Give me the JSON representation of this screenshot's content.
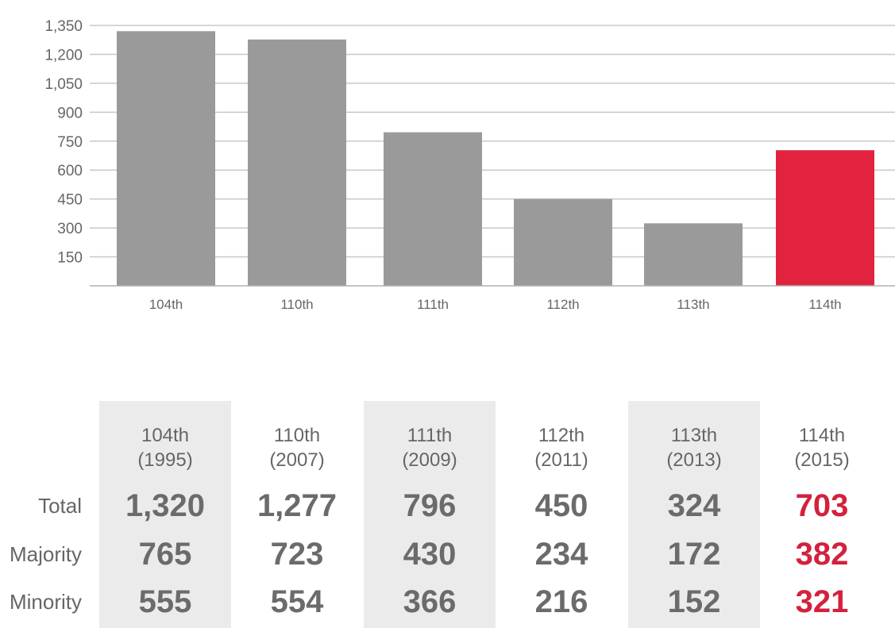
{
  "chart_data": {
    "type": "bar",
    "categories": [
      "104th",
      "110th",
      "111th",
      "112th",
      "113th",
      "114th"
    ],
    "values": [
      1320,
      1277,
      796,
      450,
      324,
      703
    ],
    "highlight_index": 5,
    "colors": {
      "bar": "#9a9a9a",
      "highlight": "#e2233f"
    },
    "ylim": [
      0,
      1350
    ],
    "yticks": [
      "150",
      "300",
      "450",
      "600",
      "750",
      "900",
      "1,050",
      "1,200",
      "1,350"
    ],
    "ytick_values": [
      150,
      300,
      450,
      600,
      750,
      900,
      1050,
      1200,
      1350
    ],
    "grid": true,
    "title": "",
    "xlabel": "",
    "ylabel": ""
  },
  "table": {
    "columns": [
      {
        "congress": "104th",
        "year": "(1995)",
        "total": "1,320",
        "majority": "765",
        "minority": "555"
      },
      {
        "congress": "110th",
        "year": "(2007)",
        "total": "1,277",
        "majority": "723",
        "minority": "554"
      },
      {
        "congress": "111th",
        "year": "(2009)",
        "total": "796",
        "majority": "430",
        "minority": "366"
      },
      {
        "congress": "112th",
        "year": "(2011)",
        "total": "450",
        "majority": "234",
        "minority": "216"
      },
      {
        "congress": "113th",
        "year": "(2013)",
        "total": "324",
        "majority": "172",
        "minority": "152"
      },
      {
        "congress": "114th",
        "year": "(2015)",
        "total": "703",
        "majority": "382",
        "minority": "321"
      }
    ],
    "row_labels": {
      "total": "Total",
      "majority": "Majority",
      "minority": "Minority"
    },
    "colors": {
      "shaded": "#ebebeb",
      "text": "#6b6b6b",
      "highlight": "#d4213d"
    }
  }
}
